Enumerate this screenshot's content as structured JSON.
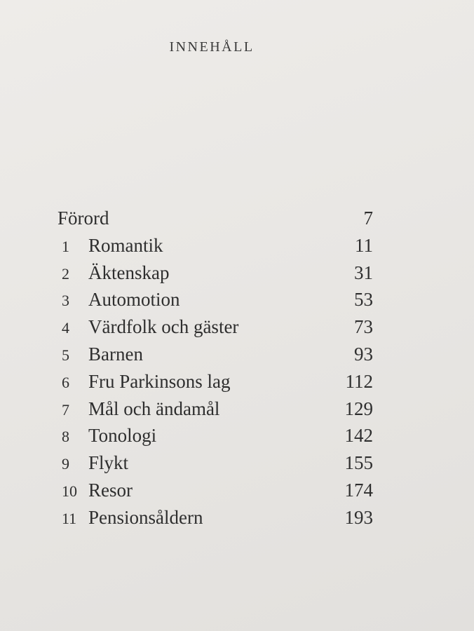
{
  "heading": "INNEHÅLL",
  "preface": {
    "label": "Förord",
    "page": "7"
  },
  "chapters": [
    {
      "num": "1",
      "label": "Romantik",
      "page": "11"
    },
    {
      "num": "2",
      "label": "Äktenskap",
      "page": "31"
    },
    {
      "num": "3",
      "label": "Automotion",
      "page": "53"
    },
    {
      "num": "4",
      "label": "Värdfolk och gäster",
      "page": "73"
    },
    {
      "num": "5",
      "label": "Barnen",
      "page": "93"
    },
    {
      "num": "6",
      "label": "Fru Parkinsons lag",
      "page": "112"
    },
    {
      "num": "7",
      "label": "Mål och ändamål",
      "page": "129"
    },
    {
      "num": "8",
      "label": "Tonologi",
      "page": "142"
    },
    {
      "num": "9",
      "label": "Flykt",
      "page": "155"
    },
    {
      "num": "10",
      "label": "Resor",
      "page": "174"
    },
    {
      "num": "11",
      "label": "Pensionsåldern",
      "page": "193"
    }
  ]
}
